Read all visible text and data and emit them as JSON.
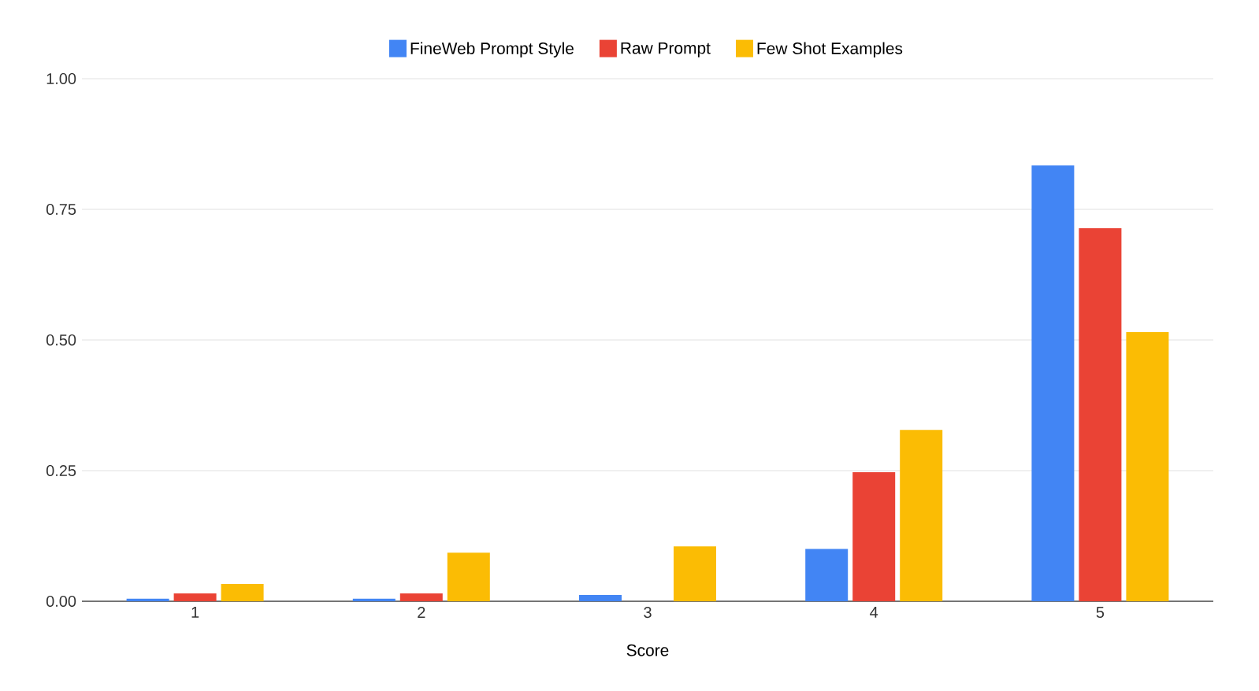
{
  "chart_data": {
    "type": "bar",
    "xlabel": "Score",
    "categories": [
      "1",
      "2",
      "3",
      "4",
      "5"
    ],
    "series": [
      {
        "name": "FineWeb Prompt Style",
        "color": "#4285f4",
        "values": [
          0.005,
          0.005,
          0.012,
          0.1,
          0.834
        ]
      },
      {
        "name": "Raw Prompt",
        "color": "#ea4335",
        "values": [
          0.015,
          0.015,
          0,
          0.247,
          0.714
        ]
      },
      {
        "name": "Few Shot Examples",
        "color": "#fbbc04",
        "values": [
          0.033,
          0.093,
          0.105,
          0.328,
          0.515
        ]
      }
    ],
    "ylim": [
      0,
      1
    ],
    "yticks": [
      {
        "value": 0,
        "label": "0.00"
      },
      {
        "value": 0.25,
        "label": "0.25"
      },
      {
        "value": 0.5,
        "label": "0.50"
      },
      {
        "value": 0.75,
        "label": "0.75"
      },
      {
        "value": 1,
        "label": "1.00"
      }
    ],
    "grid": "y",
    "legend": "top"
  }
}
